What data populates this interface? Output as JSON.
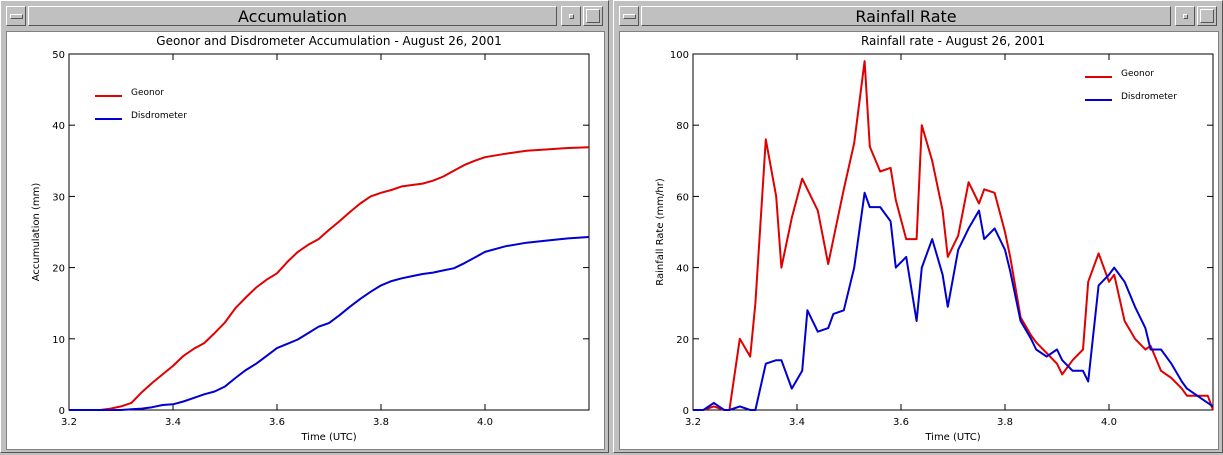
{
  "windows": [
    {
      "title": "Accumulation"
    },
    {
      "title": "Rainfall Rate"
    }
  ],
  "chart_data": [
    {
      "type": "line",
      "title": "Geonor and Disdrometer Accumulation - August 26, 2001",
      "xlabel": "Time (UTC)",
      "ylabel": "Accumulation (mm)",
      "xlim": [
        3.2,
        4.2
      ],
      "ylim": [
        0,
        50
      ],
      "xticks": [
        3.2,
        3.4,
        3.6,
        3.8,
        4.0
      ],
      "yticks": [
        0,
        10,
        20,
        30,
        40,
        50
      ],
      "xtick_labels": [
        "3.2",
        "3.4",
        "3.6",
        "3.8",
        "4.0"
      ],
      "ytick_labels": [
        "0",
        "10",
        "20",
        "30",
        "40",
        "50"
      ],
      "legend": "top-left",
      "series": [
        {
          "name": "Geonor",
          "color": "#e00000",
          "x": [
            3.2,
            3.26,
            3.28,
            3.3,
            3.32,
            3.34,
            3.36,
            3.38,
            3.4,
            3.42,
            3.44,
            3.46,
            3.48,
            3.5,
            3.52,
            3.54,
            3.56,
            3.58,
            3.6,
            3.62,
            3.64,
            3.66,
            3.68,
            3.7,
            3.72,
            3.74,
            3.76,
            3.78,
            3.8,
            3.82,
            3.84,
            3.86,
            3.88,
            3.9,
            3.92,
            3.94,
            3.96,
            3.98,
            4.0,
            4.04,
            4.08,
            4.12,
            4.16,
            4.2
          ],
          "y": [
            0,
            0,
            0.2,
            0.5,
            1.0,
            2.5,
            3.8,
            5,
            6.2,
            7.6,
            8.6,
            9.4,
            10.8,
            12.3,
            14.3,
            15.8,
            17.2,
            18.3,
            19.2,
            20.8,
            22.2,
            23.2,
            24.0,
            25.3,
            26.5,
            27.8,
            29.0,
            30.0,
            30.5,
            30.9,
            31.4,
            31.6,
            31.8,
            32.2,
            32.8,
            33.6,
            34.4,
            35.0,
            35.5,
            36.0,
            36.4,
            36.6,
            36.8,
            36.9
          ]
        },
        {
          "name": "Disdrometer",
          "color": "#0000d0",
          "x": [
            3.2,
            3.3,
            3.32,
            3.34,
            3.36,
            3.38,
            3.4,
            3.42,
            3.44,
            3.46,
            3.48,
            3.5,
            3.52,
            3.54,
            3.56,
            3.58,
            3.6,
            3.62,
            3.64,
            3.66,
            3.68,
            3.7,
            3.72,
            3.74,
            3.76,
            3.78,
            3.8,
            3.82,
            3.84,
            3.86,
            3.88,
            3.9,
            3.92,
            3.94,
            3.96,
            3.98,
            4.0,
            4.04,
            4.08,
            4.12,
            4.16,
            4.2
          ],
          "y": [
            0,
            0,
            0.1,
            0.2,
            0.4,
            0.7,
            0.8,
            1.2,
            1.7,
            2.2,
            2.6,
            3.3,
            4.5,
            5.6,
            6.5,
            7.6,
            8.7,
            9.3,
            9.9,
            10.8,
            11.7,
            12.2,
            13.3,
            14.5,
            15.6,
            16.6,
            17.5,
            18.1,
            18.5,
            18.8,
            19.1,
            19.3,
            19.6,
            19.9,
            20.6,
            21.4,
            22.2,
            23.0,
            23.5,
            23.8,
            24.1,
            24.3
          ]
        }
      ]
    },
    {
      "type": "line",
      "title": "Rainfall rate - August 26, 2001",
      "xlabel": "Time (UTC)",
      "ylabel": "Rainfall Rate (mm/hr)",
      "xlim": [
        3.2,
        4.2
      ],
      "ylim": [
        0,
        100
      ],
      "xticks": [
        3.2,
        3.4,
        3.6,
        3.8,
        4.0
      ],
      "yticks": [
        0,
        20,
        40,
        60,
        80,
        100
      ],
      "xtick_labels": [
        "3.2",
        "3.4",
        "3.6",
        "3.8",
        "4.0"
      ],
      "ytick_labels": [
        "0",
        "20",
        "40",
        "60",
        "80",
        "100"
      ],
      "legend": "top-right",
      "series": [
        {
          "name": "Geonor",
          "color": "#e00000",
          "x": [
            3.2,
            3.22,
            3.24,
            3.26,
            3.27,
            3.29,
            3.31,
            3.32,
            3.34,
            3.36,
            3.37,
            3.39,
            3.41,
            3.42,
            3.44,
            3.46,
            3.47,
            3.49,
            3.51,
            3.53,
            3.54,
            3.56,
            3.58,
            3.59,
            3.61,
            3.63,
            3.64,
            3.66,
            3.68,
            3.69,
            3.71,
            3.73,
            3.75,
            3.76,
            3.78,
            3.8,
            3.81,
            3.83,
            3.85,
            3.86,
            3.88,
            3.9,
            3.91,
            3.93,
            3.95,
            3.96,
            3.98,
            4.0,
            4.01,
            4.03,
            4.05,
            4.07,
            4.08,
            4.1,
            4.12,
            4.14,
            4.15,
            4.17,
            4.19,
            4.2
          ],
          "y": [
            0,
            0,
            1,
            0,
            0,
            20,
            15,
            30,
            76,
            60,
            40,
            54,
            65,
            62,
            56,
            41,
            48,
            62,
            75,
            98,
            74,
            67,
            68,
            59,
            48,
            48,
            80,
            70,
            56,
            43,
            49,
            64,
            58,
            62,
            61,
            50,
            43,
            26,
            21,
            19,
            16,
            13,
            10,
            14,
            17,
            36,
            44,
            36,
            38,
            25,
            20,
            17,
            18,
            11,
            9,
            6,
            4,
            4,
            4,
            0
          ]
        },
        {
          "name": "Disdrometer",
          "color": "#0000d0",
          "x": [
            3.2,
            3.22,
            3.24,
            3.26,
            3.27,
            3.29,
            3.31,
            3.32,
            3.34,
            3.36,
            3.37,
            3.39,
            3.41,
            3.42,
            3.44,
            3.46,
            3.47,
            3.49,
            3.51,
            3.53,
            3.54,
            3.56,
            3.58,
            3.59,
            3.61,
            3.63,
            3.64,
            3.66,
            3.68,
            3.69,
            3.71,
            3.73,
            3.75,
            3.76,
            3.78,
            3.8,
            3.81,
            3.83,
            3.85,
            3.86,
            3.88,
            3.9,
            3.91,
            3.93,
            3.95,
            3.96,
            3.98,
            4.0,
            4.01,
            4.03,
            4.05,
            4.07,
            4.08,
            4.1,
            4.12,
            4.14,
            4.15,
            4.17,
            4.19,
            4.2
          ],
          "y": [
            0,
            0,
            2,
            0,
            0,
            1,
            0,
            0,
            13,
            14,
            14,
            6,
            11,
            28,
            22,
            23,
            27,
            28,
            40,
            61,
            57,
            57,
            53,
            40,
            43,
            25,
            40,
            48,
            38,
            29,
            45,
            51,
            56,
            48,
            51,
            45,
            39,
            25,
            20,
            17,
            15,
            17,
            14,
            11,
            11,
            8,
            35,
            38,
            40,
            36,
            29,
            23,
            17,
            17,
            13,
            8,
            6,
            4,
            2,
            1
          ]
        }
      ]
    }
  ]
}
